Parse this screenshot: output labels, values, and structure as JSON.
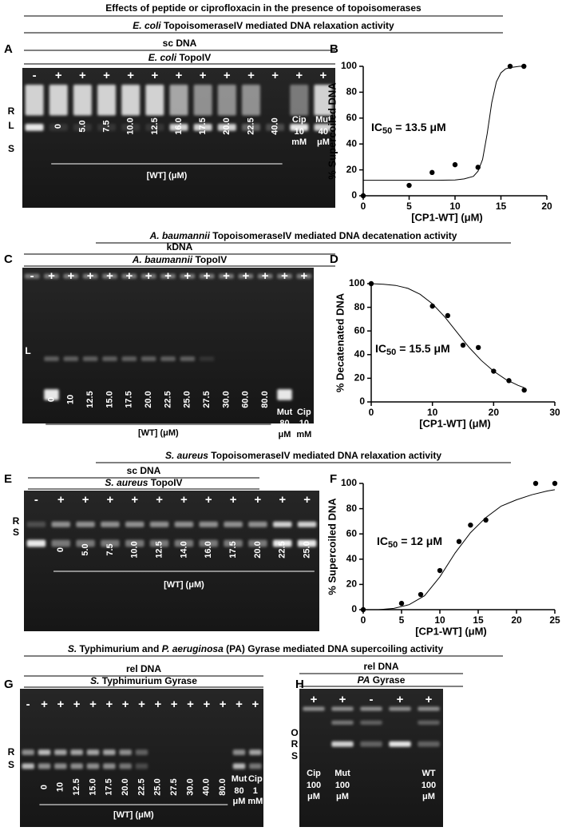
{
  "title": "Effects of peptide or ciprofloxacin in the presence of topoisomerases",
  "sections": [
    {
      "header": [
        {
          "text": "E. coli",
          "italic": true
        },
        {
          "text": " TopoisomeraseIV mediated DNA relaxation activity"
        }
      ]
    },
    {
      "header": [
        {
          "text": "A. baumannii",
          "italic": true
        },
        {
          "text": " TopoisomeraseIV mediated DNA decatenation activity"
        }
      ]
    },
    {
      "header": [
        {
          "text": "S. aureus",
          "italic": true
        },
        {
          "text": " TopoisomeraseIV mediated DNA relaxation activity"
        }
      ]
    },
    {
      "header": [
        {
          "text": "S.",
          "italic": true
        },
        {
          "text": " Typhimurium and "
        },
        {
          "text": "P. aeruginosa",
          "italic": true
        },
        {
          "text": " (PA) Gyrase mediated DNA supercoiling activity"
        }
      ]
    }
  ],
  "gels": [
    {
      "panel": "A",
      "substrate": "sc DNA",
      "enzyme": [
        {
          "text": "E. coli",
          "italic": true
        },
        {
          "text": " TopoIV"
        }
      ],
      "markers": [
        "R",
        "L",
        "S"
      ],
      "lanes": [
        {
          "sign": "-"
        },
        {
          "sign": "+",
          "label": "0"
        },
        {
          "sign": "+",
          "label": "5.0"
        },
        {
          "sign": "+",
          "label": "7.5"
        },
        {
          "sign": "+",
          "label": "10.0"
        },
        {
          "sign": "+",
          "label": "12.5"
        },
        {
          "sign": "+",
          "label": "16.0"
        },
        {
          "sign": "+",
          "label": "17.5"
        },
        {
          "sign": "+",
          "label": "20.0"
        },
        {
          "sign": "+",
          "label": "22.5"
        },
        {
          "sign": "+",
          "label": "40.0"
        },
        {
          "sign": "+",
          "label": [
            "Cip",
            "10",
            "mM"
          ]
        },
        {
          "sign": "+",
          "label": [
            "Mut",
            "40",
            "μM"
          ]
        }
      ],
      "axis": "[WT] (μM)"
    },
    {
      "panel": "C",
      "substrate": "kDNA",
      "enzyme": [
        {
          "text": "A. baumannii",
          "italic": true
        },
        {
          "text": " TopoIV"
        }
      ],
      "markers": [
        "L"
      ],
      "lanes": [
        {
          "sign": "-"
        },
        {
          "sign": "+",
          "label": "0"
        },
        {
          "sign": "+",
          "label": "10"
        },
        {
          "sign": "+",
          "label": "12.5"
        },
        {
          "sign": "+",
          "label": "15.0"
        },
        {
          "sign": "+",
          "label": "17.5"
        },
        {
          "sign": "+",
          "label": "20.0"
        },
        {
          "sign": "+",
          "label": "22.5"
        },
        {
          "sign": "+",
          "label": "25.0"
        },
        {
          "sign": "+",
          "label": "27.5"
        },
        {
          "sign": "+",
          "label": "30.0"
        },
        {
          "sign": "+",
          "label": "60.0"
        },
        {
          "sign": "+",
          "label": "80.0"
        },
        {
          "sign": "+",
          "label": [
            "Mut",
            "80",
            "μM"
          ]
        },
        {
          "sign": "+",
          "label": [
            "Cip",
            "10",
            "mM"
          ]
        }
      ],
      "axis": "[WT] (μM)"
    },
    {
      "panel": "E",
      "substrate": "sc DNA",
      "enzyme": [
        {
          "text": "S. aureus",
          "italic": true
        },
        {
          "text": " TopoIV"
        }
      ],
      "markers": [
        "R",
        "S"
      ],
      "lanes": [
        {
          "sign": "-"
        },
        {
          "sign": "+",
          "label": "0"
        },
        {
          "sign": "+",
          "label": "5.0"
        },
        {
          "sign": "+",
          "label": "7.5"
        },
        {
          "sign": "+",
          "label": "10.0"
        },
        {
          "sign": "+",
          "label": "12.5"
        },
        {
          "sign": "+",
          "label": "14.0"
        },
        {
          "sign": "+",
          "label": "16.0"
        },
        {
          "sign": "+",
          "label": "17.5"
        },
        {
          "sign": "+",
          "label": "20.0"
        },
        {
          "sign": "+",
          "label": "22.5"
        },
        {
          "sign": "+",
          "label": "25.0"
        }
      ],
      "axis": "[WT] (μM)"
    },
    {
      "panel": "G",
      "substrate": "rel DNA",
      "enzyme": [
        {
          "text": "S.",
          "italic": true
        },
        {
          "text": " Typhimurium Gyrase"
        }
      ],
      "markers": [
        "R",
        "S"
      ],
      "lanes": [
        {
          "sign": "-"
        },
        {
          "sign": "+",
          "label": "0"
        },
        {
          "sign": "+",
          "label": "10"
        },
        {
          "sign": "+",
          "label": "12.5"
        },
        {
          "sign": "+",
          "label": "15.0"
        },
        {
          "sign": "+",
          "label": "17.5"
        },
        {
          "sign": "+",
          "label": "20.0"
        },
        {
          "sign": "+",
          "label": "22.5"
        },
        {
          "sign": "+",
          "label": "25.0"
        },
        {
          "sign": "+",
          "label": "27.5"
        },
        {
          "sign": "+",
          "label": "30.0"
        },
        {
          "sign": "+",
          "label": "40.0"
        },
        {
          "sign": "+",
          "label": "80.0"
        },
        {
          "sign": "+",
          "label": [
            "Mut",
            "80",
            "μM"
          ]
        },
        {
          "sign": "+",
          "label": [
            "Cip",
            "1",
            "mM"
          ]
        }
      ],
      "axis": "[WT] (μM)"
    },
    {
      "panel": "H",
      "substrate": "rel DNA",
      "enzyme": [
        {
          "text": "PA",
          "italic": true
        },
        {
          "text": " Gyrase"
        }
      ],
      "markers": [
        "O",
        "R",
        "S"
      ],
      "lanes": [
        {
          "sign": "+",
          "label": [
            "Cip",
            "100",
            "μM"
          ]
        },
        {
          "sign": "+",
          "label": [
            "Mut",
            "100",
            "μM"
          ]
        },
        {
          "sign": "-"
        },
        {
          "sign": "+"
        },
        {
          "sign": "+",
          "label": [
            "WT",
            "100",
            "μM"
          ]
        }
      ]
    }
  ],
  "chart_data": [
    {
      "type": "scatter",
      "panel": "B",
      "xlabel": "[CP1-WT] (μM)",
      "ylabel": "% Supercoiled DNA",
      "annotation": {
        "main": "IC",
        "sub": "50",
        "rest": "= 13.5 μM"
      },
      "x": [
        0,
        5,
        7.5,
        10,
        12.5,
        16,
        17.5
      ],
      "y": [
        0,
        8,
        18,
        24,
        22,
        100,
        100
      ],
      "fit": {
        "x": [
          0,
          2,
          4,
          6,
          8,
          10,
          11,
          12,
          12.5,
          13,
          13.5,
          14,
          14.5,
          15,
          15.5,
          16,
          17,
          17.5
        ],
        "y": [
          12,
          12,
          12,
          12,
          12,
          12.2,
          13,
          15,
          19,
          28,
          48,
          72,
          88,
          95,
          98,
          99,
          100,
          100
        ]
      },
      "xlim": [
        0,
        20
      ],
      "xticks": [
        0,
        5,
        10,
        15,
        20
      ],
      "ylim": [
        0,
        100
      ],
      "yticks": [
        0,
        20,
        40,
        60,
        80,
        100
      ],
      "color": "#000000"
    },
    {
      "type": "scatter",
      "panel": "D",
      "xlabel": "[CP1-WT] (μM)",
      "ylabel": "% Decatenated DNA",
      "annotation": {
        "main": "IC",
        "sub": "50",
        "rest": "= 15.5 μM"
      },
      "x": [
        0,
        10,
        12.5,
        15,
        17.5,
        20,
        22.5,
        25
      ],
      "y": [
        100,
        81,
        73,
        48,
        46,
        26,
        18,
        10
      ],
      "fit": {
        "x": [
          0,
          2,
          4,
          6,
          8,
          10,
          12,
          14,
          16,
          18,
          20,
          22,
          24,
          25
        ],
        "y": [
          100,
          99.5,
          98.5,
          96,
          91,
          83,
          72,
          59,
          46,
          35,
          26,
          19,
          14,
          12
        ]
      },
      "xlim": [
        0,
        30
      ],
      "xticks": [
        0,
        10,
        20,
        30
      ],
      "ylim": [
        0,
        100
      ],
      "yticks": [
        0,
        20,
        40,
        60,
        80,
        100
      ],
      "color": "#000000"
    },
    {
      "type": "scatter",
      "panel": "F",
      "xlabel": "[CP1-WT] (μM)",
      "ylabel": "% Supercoiled DNA",
      "annotation": {
        "main": "IC",
        "sub": "50",
        "rest": "= 12 μM"
      },
      "x": [
        0,
        5,
        7.5,
        10,
        12.5,
        14,
        16,
        22.5,
        25
      ],
      "y": [
        0,
        5,
        12,
        31,
        54,
        67,
        71,
        100,
        100
      ],
      "fit": {
        "x": [
          0,
          2,
          4,
          6,
          8,
          10,
          12,
          14,
          16,
          18,
          20,
          22,
          24,
          25
        ],
        "y": [
          0,
          0,
          1,
          4,
          11,
          26,
          45,
          61,
          73,
          82,
          87,
          91,
          94,
          95
        ]
      },
      "xlim": [
        0,
        25
      ],
      "xticks": [
        0,
        5,
        10,
        15,
        20,
        25
      ],
      "ylim": [
        0,
        100
      ],
      "yticks": [
        0,
        20,
        40,
        60,
        80,
        100
      ],
      "color": "#000000"
    }
  ]
}
